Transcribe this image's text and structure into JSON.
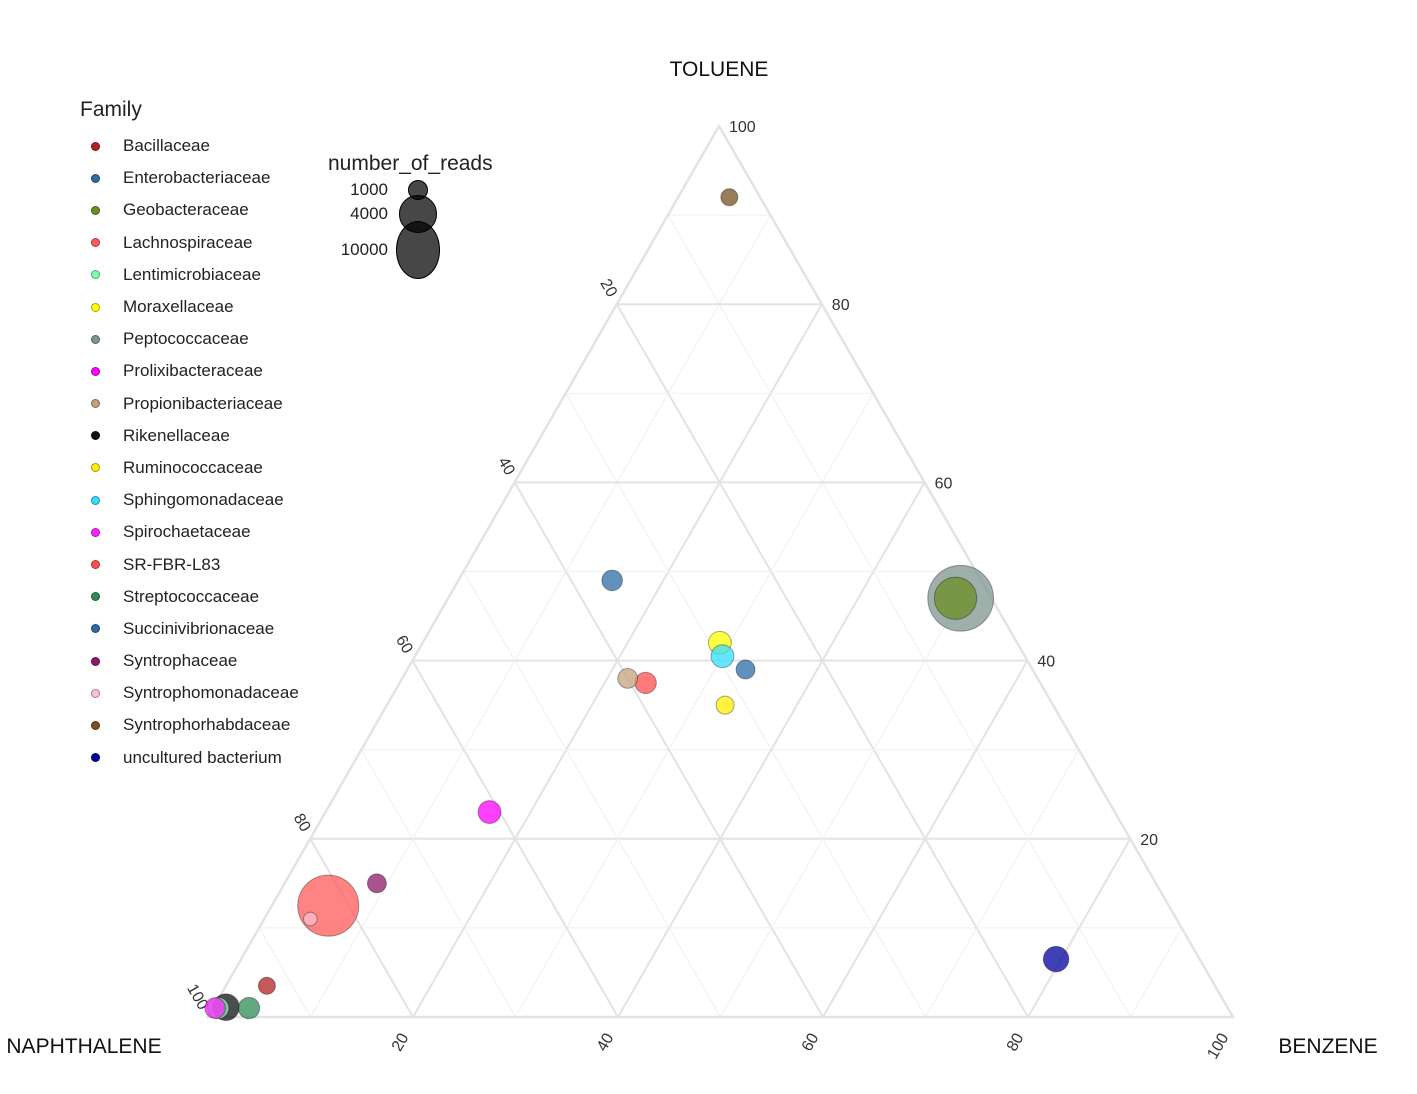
{
  "chart_data": {
    "type": "ternary",
    "axes": {
      "top": "TOLUENE",
      "left": "NAPHTHALENE",
      "right": "BENZENE"
    },
    "ticks": [
      20,
      40,
      60,
      80,
      100
    ],
    "legend_family": {
      "title": "Family",
      "items": [
        {
          "name": "Bacillaceae",
          "color": "#b22222"
        },
        {
          "name": "Enterobacteriaceae",
          "color": "#2e6da4"
        },
        {
          "name": "Geobacteraceae",
          "color": "#6b8e23"
        },
        {
          "name": "Lachnospiraceae",
          "color": "#ff5a5a"
        },
        {
          "name": "Lentimicrobiaceae",
          "color": "#7fffaa"
        },
        {
          "name": "Moraxellaceae",
          "color": "#ffff00"
        },
        {
          "name": "Peptococcaceae",
          "color": "#7f9590"
        },
        {
          "name": "Prolixibacteraceae",
          "color": "#ff00ff"
        },
        {
          "name": "Propionibacteriaceae",
          "color": "#c4a27c"
        },
        {
          "name": "Rikenellaceae",
          "color": "#111111"
        },
        {
          "name": "Ruminococcaceae",
          "color": "#ffee00"
        },
        {
          "name": "Sphingomonadaceae",
          "color": "#33ddff"
        },
        {
          "name": "Spirochaetaceae",
          "color": "#ff22ff"
        },
        {
          "name": "SR-FBR-L83",
          "color": "#ff4d4d"
        },
        {
          "name": "Streptococcaceae",
          "color": "#2e8b57"
        },
        {
          "name": "Succinivibrionaceae",
          "color": "#2b6ca8"
        },
        {
          "name": "Syntrophaceae",
          "color": "#8b1a6b"
        },
        {
          "name": "Syntrophomonadaceae",
          "color": "#ffc0cb"
        },
        {
          "name": "Syntrophorhabdaceae",
          "color": "#7a5020"
        },
        {
          "name": "uncultured bacterium",
          "color": "#0000a0"
        }
      ]
    },
    "legend_size": {
      "title": "number_of_reads",
      "items": [
        {
          "label": "1000",
          "value": 1000
        },
        {
          "label": "4000",
          "value": 4000
        },
        {
          "label": "10000",
          "value": 10000
        }
      ]
    },
    "points": [
      {
        "family": "Syntrophorhabdaceae",
        "toluene": 92,
        "benzene": 5,
        "naphthalene": 3,
        "reads": 700
      },
      {
        "family": "Peptococcaceae",
        "toluene": 47,
        "benzene": 50,
        "naphthalene": 3,
        "reads": 14000
      },
      {
        "family": "Geobacteraceae",
        "toluene": 47,
        "benzene": 49.5,
        "naphthalene": 3.5,
        "reads": 5500
      },
      {
        "family": "Enterobacteriaceae",
        "toluene": 49,
        "benzene": 15,
        "naphthalene": 36,
        "reads": 1100
      },
      {
        "family": "Moraxellaceae",
        "toluene": 42,
        "benzene": 29,
        "naphthalene": 29,
        "reads": 1400
      },
      {
        "family": "Sphingomonadaceae",
        "toluene": 40.5,
        "benzene": 30,
        "naphthalene": 29.5,
        "reads": 1400
      },
      {
        "family": "Succinivibrionaceae",
        "toluene": 39,
        "benzene": 33,
        "naphthalene": 28,
        "reads": 900
      },
      {
        "family": "Propionibacteriaceae",
        "toluene": 38,
        "benzene": 22,
        "naphthalene": 40,
        "reads": 1000
      },
      {
        "family": "SR-FBR-L83",
        "toluene": 37.5,
        "benzene": 24,
        "naphthalene": 38.5,
        "reads": 1200
      },
      {
        "family": "Ruminococcaceae",
        "toluene": 35,
        "benzene": 33,
        "naphthalene": 32,
        "reads": 800
      },
      {
        "family": "Prolixibacteraceae",
        "toluene": 23,
        "benzene": 16,
        "naphthalene": 61,
        "reads": 1400
      },
      {
        "family": "Syntrophaceae",
        "toluene": 15,
        "benzene": 9,
        "naphthalene": 76,
        "reads": 900
      },
      {
        "family": "Lachnospiraceae",
        "toluene": 12.5,
        "benzene": 5.5,
        "naphthalene": 82,
        "reads": 12000
      },
      {
        "family": "Syntrophomonadaceae",
        "toluene": 11,
        "benzene": 4.5,
        "naphthalene": 84.5,
        "reads": 400
      },
      {
        "family": "uncultured bacterium",
        "toluene": 6.5,
        "benzene": 79.5,
        "naphthalene": 14,
        "reads": 1800
      },
      {
        "family": "Bacillaceae",
        "toluene": 3.5,
        "benzene": 4,
        "naphthalene": 92.5,
        "reads": 700
      },
      {
        "family": "Streptococcaceae",
        "toluene": 1,
        "benzene": 3.5,
        "naphthalene": 95.5,
        "reads": 1200
      },
      {
        "family": "Lentimicrobiaceae",
        "toluene": 1,
        "benzene": 0.5,
        "naphthalene": 98.5,
        "reads": 1200
      },
      {
        "family": "Spirochaetaceae",
        "toluene": 1,
        "benzene": 0.2,
        "naphthalene": 98.8,
        "reads": 1100
      },
      {
        "family": "Rikenellaceae",
        "toluene": 1.1,
        "benzene": 1.2,
        "naphthalene": 97.7,
        "reads": 2000
      }
    ]
  }
}
